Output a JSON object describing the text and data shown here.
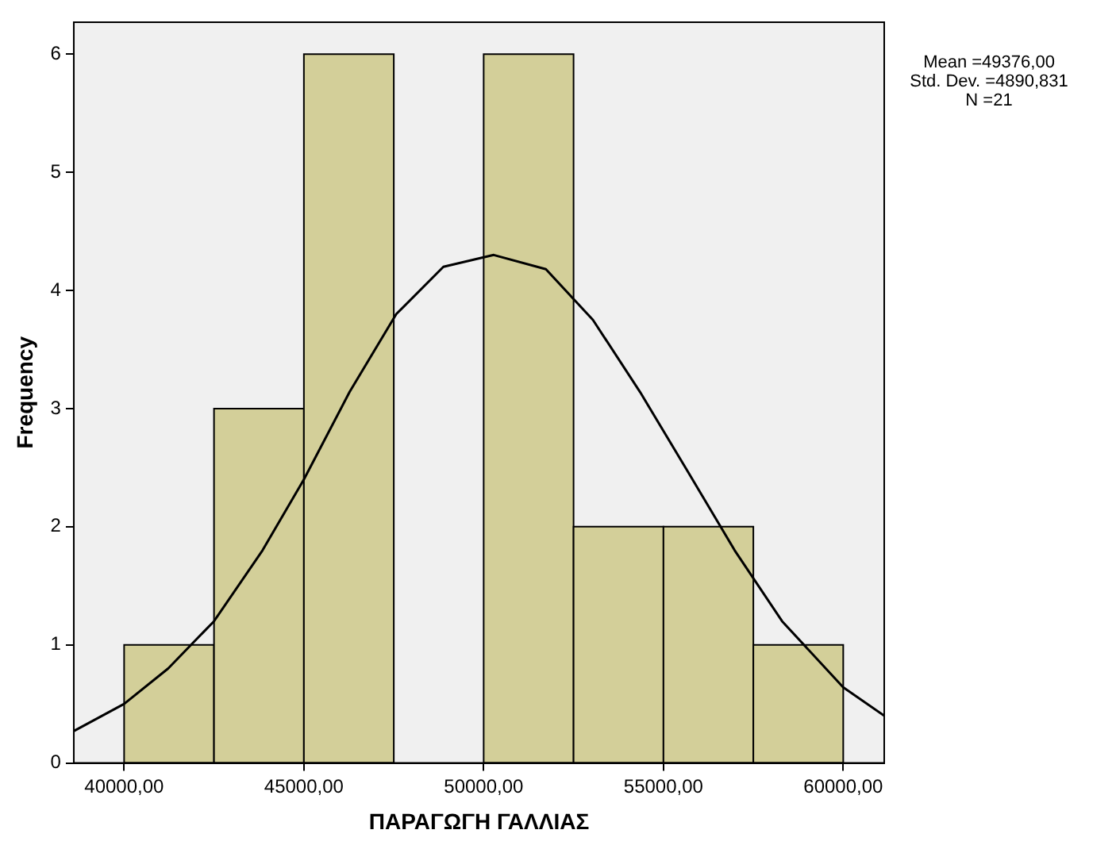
{
  "chart_data": {
    "type": "histogram",
    "xlabel": "ΠΑΡΑΓΩΓΗ ΓΑΛΛΙΑΣ",
    "ylabel": "Frequency",
    "bins": [
      40000,
      42500,
      45000,
      47500,
      50000,
      52500,
      55000,
      57500,
      60000
    ],
    "values": [
      1,
      3,
      6,
      0,
      6,
      2,
      2,
      1
    ],
    "color": "#d3cf99",
    "series": [
      {
        "type": "line",
        "color": "#000000",
        "x": [
          38600,
          40000,
          41225,
          42500,
          43850,
          45000,
          46270,
          47570,
          48880,
          50280,
          51730,
          53040,
          54350,
          55670,
          56980,
          58300,
          60000,
          61140
        ],
        "values": [
          0.27,
          0.5,
          0.8,
          1.2,
          1.8,
          2.4,
          3.14,
          3.8,
          4.2,
          4.3,
          4.18,
          3.75,
          3.14,
          2.47,
          1.8,
          1.2,
          0.64,
          0.4
        ]
      }
    ],
    "xlim": [
      38600,
      61140
    ],
    "xticks": [
      {
        "value": 40000,
        "label": "40000,00"
      },
      {
        "value": 45000,
        "label": "45000,00"
      },
      {
        "value": 50000,
        "label": "50000,00"
      },
      {
        "value": 55000,
        "label": "55000,00"
      },
      {
        "value": 60000,
        "label": "60000,00"
      }
    ],
    "ylim": [
      0,
      6.27
    ],
    "yticks": [
      0,
      1,
      2,
      3,
      4,
      5,
      6
    ],
    "annotations": [
      "Mean =49376,00",
      "Std. Dev. =4890,831",
      "N =21"
    ],
    "grid": false,
    "legend": false
  }
}
